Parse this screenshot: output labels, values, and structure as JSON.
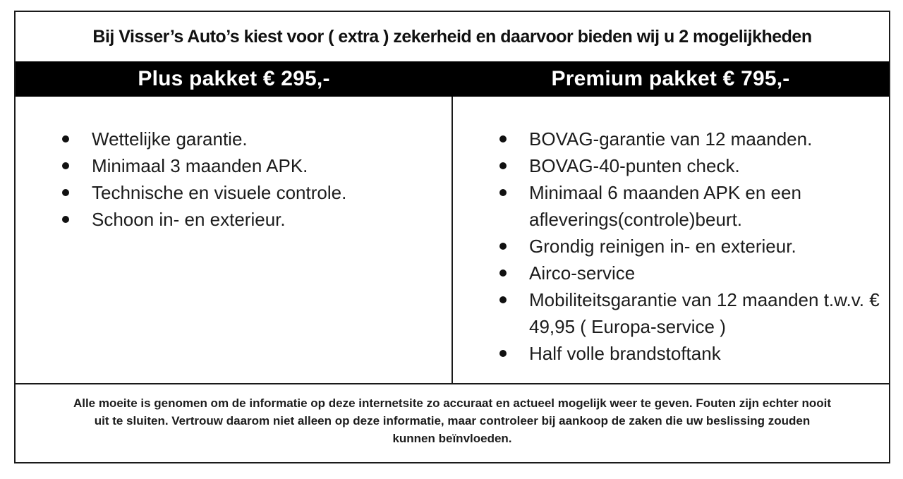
{
  "header": {
    "title": "Bij Visser’s Auto’s kiest voor ( extra ) zekerheid en daarvoor bieden wij u 2 mogelijkheden"
  },
  "packages": [
    {
      "header": "Plus pakket € 295,-",
      "items": [
        "Wettelijke garantie.",
        "Minimaal 3 maanden APK.",
        "Technische en visuele controle.",
        "Schoon in- en exterieur."
      ]
    },
    {
      "header": "Premium pakket € 795,-",
      "items": [
        "BOVAG-garantie van 12 maanden.",
        "BOVAG-40-punten check.",
        "Minimaal 6 maanden APK en een afleverings(controle)beurt.",
        "Grondig reinigen in- en exterieur.",
        "Airco-service",
        "Mobiliteitsgarantie van 12 maanden t.w.v. € 49,95 ( Europa-service )",
        "Half volle brandstoftank"
      ]
    }
  ],
  "disclaimer": {
    "lines": [
      "Alle moeite is genomen om de informatie op deze internetsite zo accuraat en actueel mogelijk weer te geven. Fouten zijn echter nooit",
      "uit te sluiten. Vertrouw daarom niet alleen op deze informatie, maar controleer bij aankoop de zaken die uw beslissing zouden",
      "kunnen beïnvloeden."
    ]
  },
  "colors": {
    "bar_background": "#000000",
    "bar_text": "#ffffff",
    "text": "#1a1a1a",
    "border": "#1a1a1a",
    "page_background": "#ffffff"
  }
}
